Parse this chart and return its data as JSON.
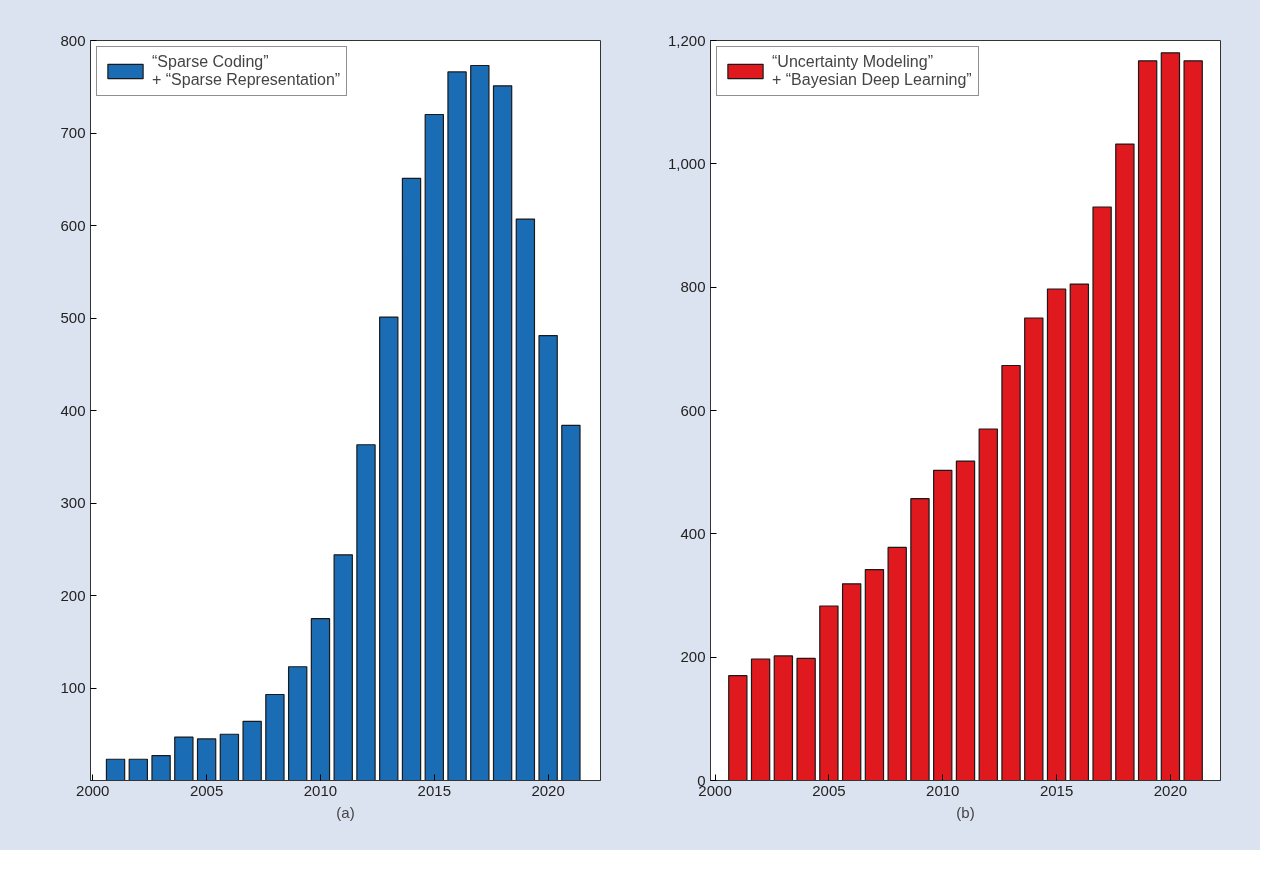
{
  "chart_data": [
    {
      "type": "bar",
      "xlabel": "(a)",
      "x": [
        2001,
        2002,
        2003,
        2004,
        2005,
        2006,
        2007,
        2008,
        2009,
        2010,
        2011,
        2012,
        2013,
        2014,
        2015,
        2016,
        2017,
        2018,
        2019,
        2020,
        2021
      ],
      "series": [
        {
          "name": "“Sparse Coding”\n+ “Sparse Representation”",
          "color": "#1a6db5",
          "values": [
            23,
            23,
            27,
            47,
            45,
            50,
            64,
            93,
            123,
            175,
            244,
            363,
            501,
            651,
            720,
            766,
            773,
            751,
            607,
            481,
            384
          ]
        }
      ],
      "xlim": [
        1999.9,
        2022.3
      ],
      "xticks": [
        2000,
        2005,
        2010,
        2015,
        2020
      ],
      "ylim": [
        0,
        800
      ],
      "yticks": [
        100,
        200,
        300,
        400,
        500,
        600,
        700,
        800
      ],
      "grid": false,
      "legend": "top left"
    },
    {
      "type": "bar",
      "xlabel": "(b)",
      "x": [
        2001,
        2002,
        2003,
        2004,
        2005,
        2006,
        2007,
        2008,
        2009,
        2010,
        2011,
        2012,
        2013,
        2014,
        2015,
        2016,
        2017,
        2018,
        2019,
        2020,
        2021
      ],
      "series": [
        {
          "name": "“Uncertainty Modeling”\n+ “Bayesian Deep Learning”",
          "color": "#e0191f",
          "values": [
            170,
            197,
            202,
            198,
            283,
            319,
            342,
            378,
            457,
            503,
            518,
            570,
            673,
            750,
            797,
            805,
            930,
            1032,
            1167,
            1180,
            1167
          ]
        }
      ],
      "xlim": [
        1999.8,
        2022.2
      ],
      "xticks": [
        2000,
        2005,
        2010,
        2015,
        2020
      ],
      "ylim": [
        0,
        1200
      ],
      "yticks": [
        0,
        200,
        400,
        600,
        800,
        {
          "value": 1000,
          "label": "1,000"
        },
        {
          "value": 1200,
          "label": "1,200"
        }
      ],
      "grid": false,
      "legend": "top left"
    }
  ]
}
